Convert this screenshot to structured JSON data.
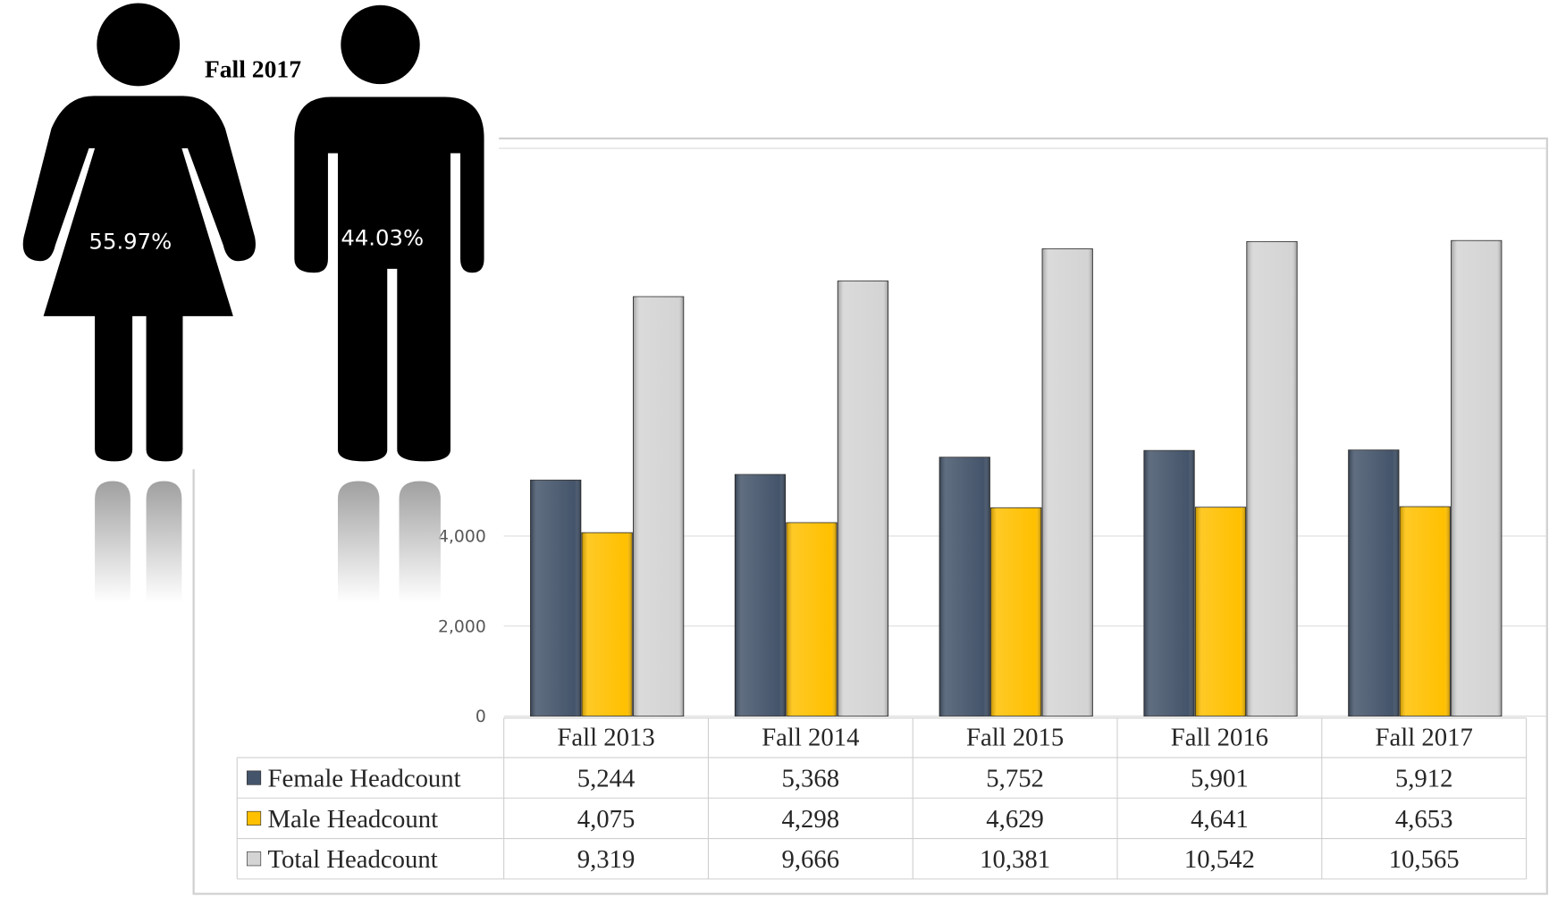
{
  "infographic": {
    "title": "Fall 2017",
    "female_share": "55.97%",
    "male_share": "44.03%"
  },
  "chart_data": {
    "type": "bar",
    "categories": [
      "Fall 2013",
      "Fall 2014",
      "Fall 2015",
      "Fall 2016",
      "Fall 2017"
    ],
    "series": [
      {
        "name": "Female Headcount",
        "color": "#44546a",
        "values": [
          5244,
          5368,
          5752,
          5901,
          5912
        ],
        "value_labels": [
          "5,244",
          "5,368",
          "5,752",
          "5,901",
          "5,912"
        ]
      },
      {
        "name": "Male Headcount",
        "color": "#ffc000",
        "values": [
          4075,
          4298,
          4629,
          4641,
          4653
        ],
        "value_labels": [
          "4,075",
          "4,298",
          "4,629",
          "4,641",
          "4,653"
        ]
      },
      {
        "name": "Total Headcount",
        "color": "#d4d4d4",
        "values": [
          9319,
          9666,
          10381,
          10542,
          10565
        ],
        "value_labels": [
          "9,319",
          "9,666",
          "10,381",
          "10,542",
          "10,565"
        ]
      }
    ],
    "ylim": [
      0,
      12000
    ],
    "yticks": [
      0,
      {
        "value": 2000,
        "label": "2,000"
      },
      {
        "value": 4000,
        "label": "4,000"
      }
    ],
    "grid": true
  }
}
